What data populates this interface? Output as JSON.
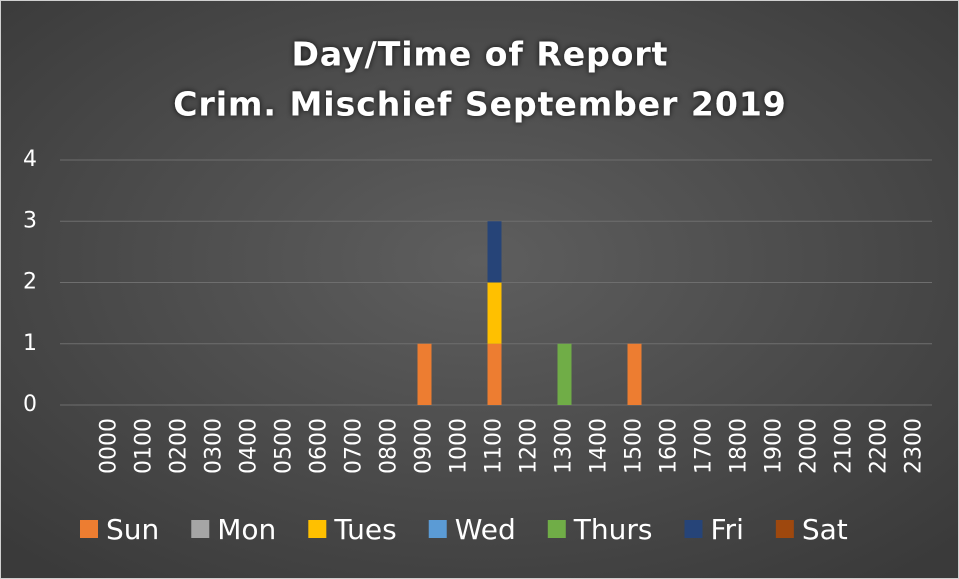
{
  "chart_data": {
    "type": "stacked_bar",
    "title": "Day/Time of Report",
    "subtitle": "Crim. Mischief September 2019",
    "categories": [
      "0000",
      "0100",
      "0200",
      "0300",
      "0400",
      "0500",
      "0600",
      "0700",
      "0800",
      "0900",
      "1000",
      "1100",
      "1200",
      "1300",
      "1400",
      "1500",
      "1600",
      "1700",
      "1800",
      "1900",
      "2000",
      "2100",
      "2200",
      "2300"
    ],
    "series": [
      {
        "name": "Sun",
        "color": "#ed7d31",
        "values": [
          0,
          0,
          0,
          0,
          0,
          0,
          0,
          0,
          0,
          1,
          0,
          1,
          0,
          0,
          0,
          1,
          0,
          0,
          0,
          0,
          0,
          0,
          0,
          0
        ]
      },
      {
        "name": "Mon",
        "color": "#a5a5a5",
        "values": [
          0,
          0,
          0,
          0,
          0,
          0,
          0,
          0,
          0,
          0,
          0,
          0,
          0,
          0,
          0,
          0,
          0,
          0,
          0,
          0,
          0,
          0,
          0,
          0
        ]
      },
      {
        "name": "Tues",
        "color": "#ffc000",
        "values": [
          0,
          0,
          0,
          0,
          0,
          0,
          0,
          0,
          0,
          0,
          0,
          1,
          0,
          0,
          0,
          0,
          0,
          0,
          0,
          0,
          0,
          0,
          0,
          0
        ]
      },
      {
        "name": "Wed",
        "color": "#5b9bd5",
        "values": [
          0,
          0,
          0,
          0,
          0,
          0,
          0,
          0,
          0,
          0,
          0,
          0,
          0,
          0,
          0,
          0,
          0,
          0,
          0,
          0,
          0,
          0,
          0,
          0
        ]
      },
      {
        "name": "Thurs",
        "color": "#70ad47",
        "values": [
          0,
          0,
          0,
          0,
          0,
          0,
          0,
          0,
          0,
          0,
          0,
          0,
          0,
          1,
          0,
          0,
          0,
          0,
          0,
          0,
          0,
          0,
          0,
          0
        ]
      },
      {
        "name": "Fri",
        "color": "#264478",
        "values": [
          0,
          0,
          0,
          0,
          0,
          0,
          0,
          0,
          0,
          0,
          0,
          1,
          0,
          0,
          0,
          0,
          0,
          0,
          0,
          0,
          0,
          0,
          0,
          0
        ]
      },
      {
        "name": "Sat",
        "color": "#9e480e",
        "values": [
          0,
          0,
          0,
          0,
          0,
          0,
          0,
          0,
          0,
          0,
          0,
          0,
          0,
          0,
          0,
          0,
          0,
          0,
          0,
          0,
          0,
          0,
          0,
          0
        ]
      }
    ],
    "ylim": [
      0,
      4
    ],
    "yticks": [
      0,
      1,
      2,
      3,
      4
    ],
    "grid": true,
    "legend": "bottom"
  }
}
